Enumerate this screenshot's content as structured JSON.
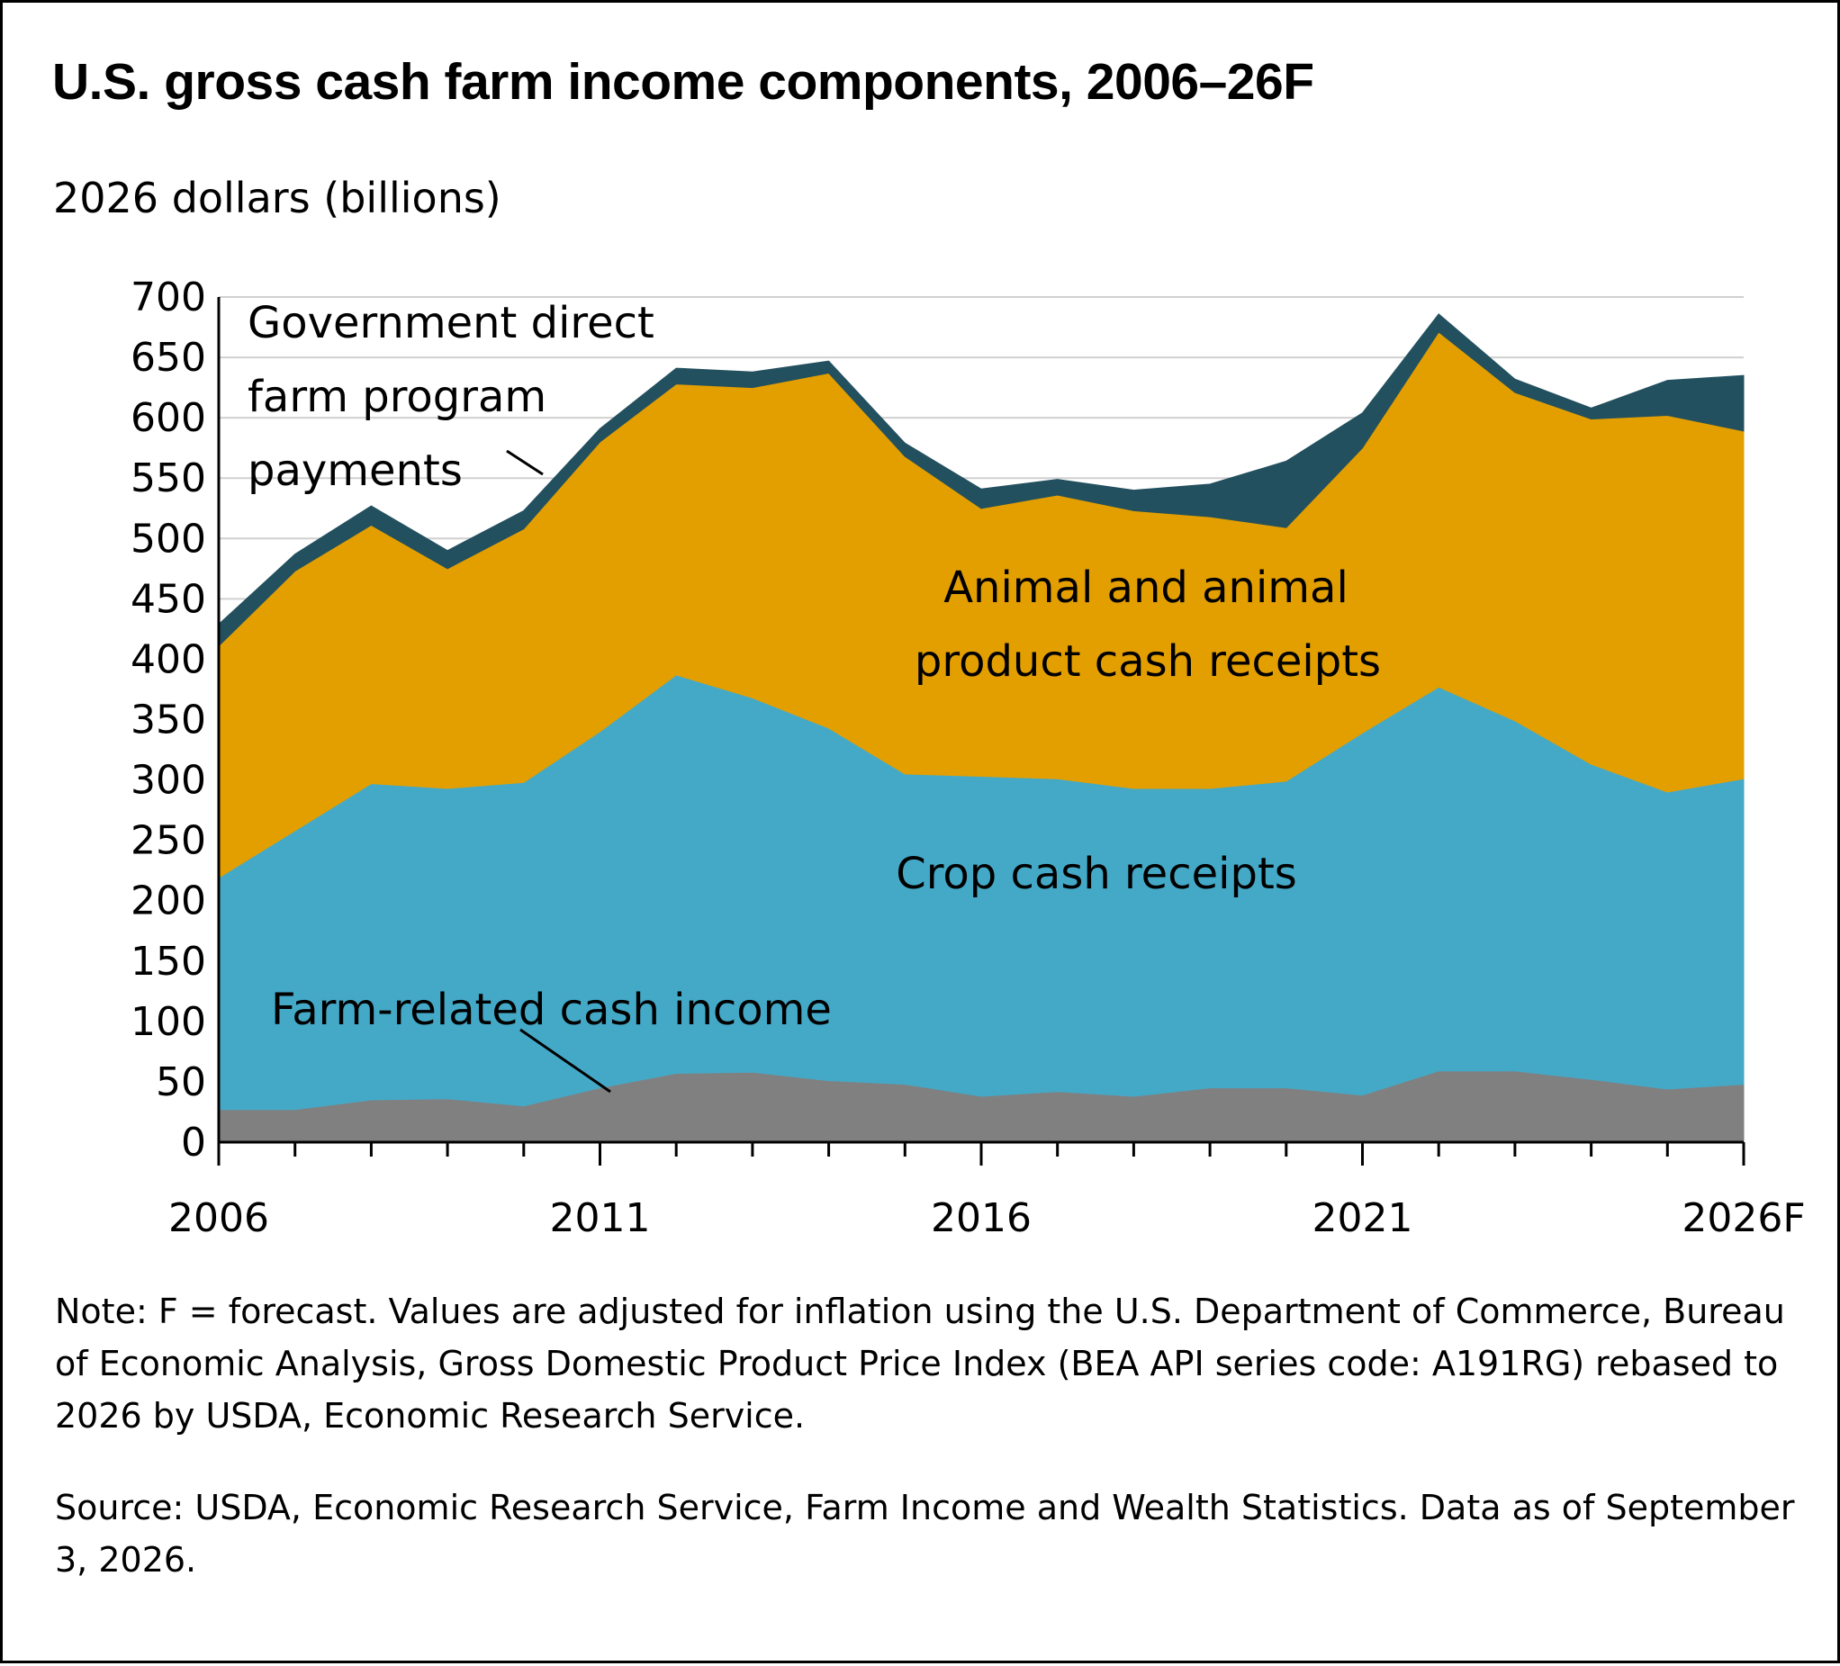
{
  "title": "U.S. gross cash farm income components, 2006–26F",
  "y_unit_label": "2026 dollars (billions)",
  "note": "Note: F = forecast. Values are adjusted for inflation using the U.S. Department of Commerce, Bureau of Economic Analysis, Gross Domestic Product Price Index (BEA API series code: A191RG) rebased to 2026 by USDA, Economic Research Service.",
  "source": "Source: USDA, Economic Research Service, Farm Income and Wealth Statistics. Data as of September 3, 2026.",
  "colors": {
    "farm_related": "#808080",
    "crop": "#44a9c7",
    "animal": "#e39f00",
    "government": "#23505f",
    "grid": "#d0d0d0",
    "axis": "#000000"
  },
  "chart_data": {
    "type": "area",
    "stacked": true,
    "x": [
      2006,
      2007,
      2008,
      2009,
      2010,
      2011,
      2012,
      2013,
      2014,
      2015,
      2016,
      2017,
      2018,
      2019,
      2020,
      2021,
      2022,
      2023,
      2024,
      2025,
      2026
    ],
    "x_tick_values": [
      2006,
      2011,
      2016,
      2021,
      2026
    ],
    "x_tick_labels": [
      "2006",
      "2011",
      "2016",
      "2021",
      "2026F"
    ],
    "ylim": [
      0,
      700
    ],
    "y_ticks": [
      0,
      50,
      100,
      150,
      200,
      250,
      300,
      350,
      400,
      450,
      500,
      550,
      600,
      650,
      700
    ],
    "grid": "horizontal",
    "legend": "none (direct labels on areas)",
    "series": [
      {
        "name": "Farm-related cash income",
        "values": [
          27,
          27,
          35,
          36,
          30,
          45,
          57,
          58,
          51,
          48,
          38,
          42,
          38,
          45,
          45,
          39,
          59,
          59,
          52,
          44,
          48
        ]
      },
      {
        "name": "Crop cash receipts",
        "values": [
          192,
          231,
          262,
          257,
          268,
          295,
          330,
          310,
          292,
          257,
          265,
          259,
          255,
          248,
          254,
          300,
          318,
          290,
          261,
          246,
          253
        ]
      },
      {
        "name": "Animal and animal product cash receipts",
        "values": [
          192,
          215,
          214,
          182,
          210,
          240,
          241,
          257,
          294,
          263,
          222,
          235,
          230,
          225,
          210,
          236,
          294,
          272,
          286,
          312,
          288
        ]
      },
      {
        "name": "Government direct farm program payments",
        "values": [
          18,
          14,
          16,
          15,
          15,
          11,
          13,
          13,
          10,
          11,
          16,
          13,
          17,
          27,
          55,
          29,
          15,
          11,
          9,
          29,
          46
        ]
      }
    ],
    "labels": {
      "government_line1": "Government direct",
      "government_line2": "farm program",
      "government_line3": "payments",
      "animal_line1": "Animal and animal",
      "animal_line2": "product cash receipts",
      "crop": "Crop cash receipts",
      "farm_related": "Farm-related cash income"
    }
  }
}
